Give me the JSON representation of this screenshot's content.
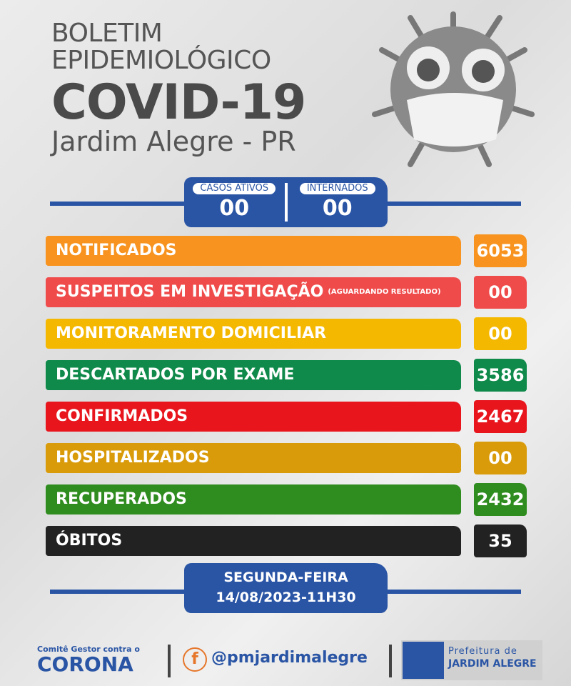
{
  "header": {
    "line1": "BOLETIM",
    "line2": "EPIDEMIOLÓGICO",
    "title": "COVID-19",
    "location": "Jardim Alegre - PR"
  },
  "summary": {
    "active_label": "CASOS ATIVOS",
    "active_value": "00",
    "hosp_label": "INTERNADOS",
    "hosp_value": "00"
  },
  "rows": [
    {
      "label": "NOTIFICADOS",
      "note": "",
      "value": "6053",
      "color": "#f7931e"
    },
    {
      "label": "SUSPEITOS EM INVESTIGAÇÃO",
      "note": "(AGUARDANDO RESULTADO)",
      "value": "00",
      "color": "#f04b4b"
    },
    {
      "label": "MONITORAMENTO DOMICILIAR",
      "note": "",
      "value": "00",
      "color": "#f5b800"
    },
    {
      "label": "DESCARTADOS POR EXAME",
      "note": "",
      "value": "3586",
      "color": "#0f8a4a"
    },
    {
      "label": "CONFIRMADOS",
      "note": "",
      "value": "2467",
      "color": "#e8151d"
    },
    {
      "label": "HOSPITALIZADOS",
      "note": "",
      "value": "00",
      "color": "#d99b0a"
    },
    {
      "label": "RECUPERADOS",
      "note": "",
      "value": "2432",
      "color": "#2f8c1e"
    },
    {
      "label": "ÓBITOS",
      "note": "",
      "value": "35",
      "color": "#222222"
    }
  ],
  "date": {
    "weekday": "SEGUNDA-FEIRA",
    "datetime": "14/08/2023-11H30"
  },
  "footer": {
    "committee_line1": "Comitê Gestor contra o",
    "committee_line2": "CORONA",
    "social": "@pmjardimalegre",
    "pref_line1": "Prefeitura de",
    "pref_line2": "JARDIM ALEGRE"
  },
  "colors": {
    "blue": "#2a55a5"
  }
}
